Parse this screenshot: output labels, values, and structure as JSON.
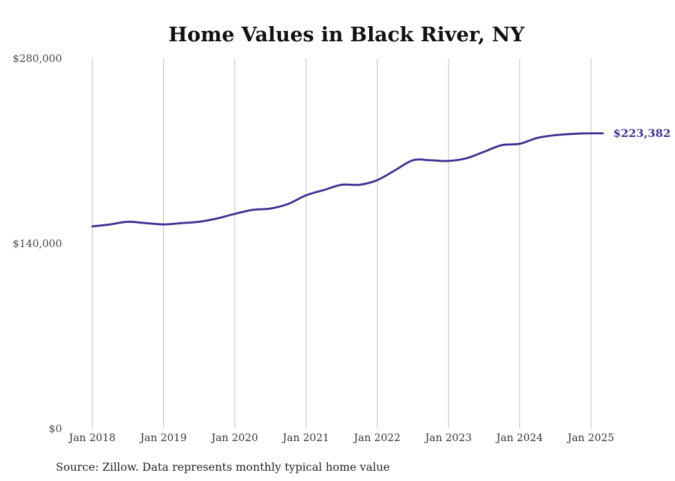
{
  "chart_data": {
    "type": "line",
    "title": "Home Values in Black River, NY",
    "xlabel": "",
    "ylabel": "",
    "ylim": [
      0,
      280000
    ],
    "y_ticks": [
      {
        "value": 0,
        "label": "$0"
      },
      {
        "value": 140000,
        "label": "$140,000"
      },
      {
        "value": 280000,
        "label": "$280,000"
      }
    ],
    "x_ticks": [
      {
        "value": "2018-01",
        "label": "Jan 2018"
      },
      {
        "value": "2019-01",
        "label": "Jan 2019"
      },
      {
        "value": "2020-01",
        "label": "Jan 2020"
      },
      {
        "value": "2021-01",
        "label": "Jan 2021"
      },
      {
        "value": "2022-01",
        "label": "Jan 2022"
      },
      {
        "value": "2023-01",
        "label": "Jan 2023"
      },
      {
        "value": "2024-01",
        "label": "Jan 2024"
      },
      {
        "value": "2025-01",
        "label": "Jan 2025"
      }
    ],
    "xlim": [
      "2018-01",
      "2025-03"
    ],
    "grid": "vertical",
    "series": [
      {
        "color": "#3c3491",
        "x": [
          "2018-01",
          "2018-04",
          "2018-07",
          "2018-10",
          "2019-01",
          "2019-04",
          "2019-07",
          "2019-10",
          "2020-01",
          "2020-04",
          "2020-07",
          "2020-10",
          "2021-01",
          "2021-04",
          "2021-07",
          "2021-10",
          "2022-01",
          "2022-04",
          "2022-07",
          "2022-10",
          "2023-01",
          "2023-04",
          "2023-07",
          "2023-10",
          "2024-01",
          "2024-04",
          "2024-07",
          "2024-10",
          "2025-01",
          "2025-03"
        ],
        "values": [
          153000,
          154500,
          156500,
          155500,
          154500,
          155500,
          156500,
          159000,
          162500,
          165500,
          166500,
          170000,
          176500,
          180500,
          184500,
          184500,
          188000,
          195500,
          203000,
          203000,
          202500,
          204500,
          209500,
          214500,
          215500,
          220000,
          222000,
          223000,
          223400,
          223382
        ]
      }
    ],
    "end_label": "$223,382",
    "source": "Source: Zillow. Data represents monthly typical home value"
  }
}
